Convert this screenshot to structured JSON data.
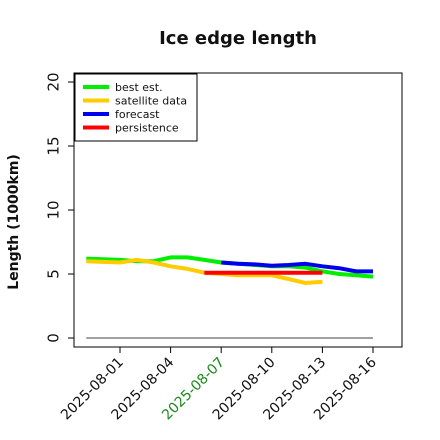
{
  "chart_data": {
    "type": "line",
    "title": "Ice edge length",
    "xlabel": "",
    "ylabel": "Length (1000km)",
    "ylim": [
      0,
      20
    ],
    "yticks": [
      0,
      5,
      10,
      15,
      20
    ],
    "xticks": [
      "2025-08-01",
      "2025-08-04",
      "2025-08-07",
      "2025-08-10",
      "2025-08-13",
      "2025-08-16"
    ],
    "highlight_tick": "2025-08-07",
    "highlight_color": "#1a8a1a",
    "reference_line": {
      "y": 0,
      "color": "#808080",
      "x_start": "2025-07-30",
      "x_end": "2025-08-16"
    },
    "legend": {
      "location": "upper left"
    },
    "series": [
      {
        "name": "best est.",
        "color": "#00ee00",
        "points": [
          {
            "x": "2025-07-30",
            "y": 6.2
          },
          {
            "x": "2025-08-01",
            "y": 6.1
          },
          {
            "x": "2025-08-02",
            "y": 6.0
          },
          {
            "x": "2025-08-03",
            "y": 6.0
          },
          {
            "x": "2025-08-04",
            "y": 6.3
          },
          {
            "x": "2025-08-05",
            "y": 6.3
          },
          {
            "x": "2025-08-06",
            "y": 6.1
          },
          {
            "x": "2025-08-07",
            "y": 5.9
          },
          {
            "x": "2025-08-08",
            "y": 5.8
          },
          {
            "x": "2025-08-09",
            "y": 5.7
          },
          {
            "x": "2025-08-10",
            "y": 5.6
          },
          {
            "x": "2025-08-11",
            "y": 5.6
          },
          {
            "x": "2025-08-12",
            "y": 5.5
          },
          {
            "x": "2025-08-13",
            "y": 5.2
          },
          {
            "x": "2025-08-14",
            "y": 5.0
          },
          {
            "x": "2025-08-15",
            "y": 4.9
          },
          {
            "x": "2025-08-16",
            "y": 4.8
          }
        ]
      },
      {
        "name": "satellite data",
        "color": "#ffcc00",
        "points": [
          {
            "x": "2025-07-30",
            "y": 6.0
          },
          {
            "x": "2025-08-01",
            "y": 5.9
          },
          {
            "x": "2025-08-02",
            "y": 6.1
          },
          {
            "x": "2025-08-03",
            "y": 5.9
          },
          {
            "x": "2025-08-04",
            "y": 5.6
          },
          {
            "x": "2025-08-05",
            "y": 5.4
          },
          {
            "x": "2025-08-06",
            "y": 5.1
          },
          {
            "x": "2025-08-07",
            "y": 5.0
          },
          {
            "x": "2025-08-08",
            "y": 4.9
          },
          {
            "x": "2025-08-09",
            "y": 4.9
          },
          {
            "x": "2025-08-10",
            "y": 4.9
          },
          {
            "x": "2025-08-11",
            "y": 4.6
          },
          {
            "x": "2025-08-12",
            "y": 4.3
          },
          {
            "x": "2025-08-13",
            "y": 4.4
          }
        ]
      },
      {
        "name": "forecast",
        "color": "#0000ee",
        "points": [
          {
            "x": "2025-08-07",
            "y": 5.9
          },
          {
            "x": "2025-08-08",
            "y": 5.8
          },
          {
            "x": "2025-08-09",
            "y": 5.75
          },
          {
            "x": "2025-08-10",
            "y": 5.65
          },
          {
            "x": "2025-08-11",
            "y": 5.7
          },
          {
            "x": "2025-08-12",
            "y": 5.8
          },
          {
            "x": "2025-08-13",
            "y": 5.6
          },
          {
            "x": "2025-08-14",
            "y": 5.45
          },
          {
            "x": "2025-08-15",
            "y": 5.2
          },
          {
            "x": "2025-08-16",
            "y": 5.2
          }
        ]
      },
      {
        "name": "persistence",
        "color": "#ff0000",
        "points": [
          {
            "x": "2025-08-06",
            "y": 5.1
          },
          {
            "x": "2025-08-13",
            "y": 5.1
          }
        ]
      }
    ]
  }
}
